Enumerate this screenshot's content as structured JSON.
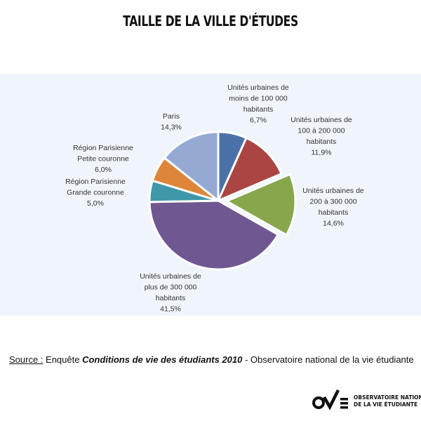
{
  "chart_data": {
    "type": "pie",
    "title": "TAILLE DE LA VILLE D'ÉTUDES",
    "slices": [
      {
        "label_lines": [
          "Unités urbaines de",
          "moins de 100 000",
          "habitants",
          "6,7%"
        ],
        "value": 6.7,
        "color": "#4a72a8",
        "exploded": false
      },
      {
        "label_lines": [
          "Unités urbaines de",
          "100 à 200 000",
          "habitants",
          "11,9%"
        ],
        "value": 11.9,
        "color": "#aa4543",
        "exploded": false
      },
      {
        "label_lines": [
          "Unités urbaines de",
          "200 à 300 000",
          "habitants",
          "14,6%"
        ],
        "value": 14.6,
        "color": "#88a74d",
        "exploded": true
      },
      {
        "label_lines": [
          "Unités urbaines de",
          "plus de 300 000",
          "habitants",
          "41,5%"
        ],
        "value": 41.5,
        "color": "#6f5891",
        "exploded": false
      },
      {
        "label_lines": [
          "Région Parisienne",
          "Grande couronne",
          "5,0%"
        ],
        "value": 5.0,
        "color": "#3f98aa",
        "exploded": false
      },
      {
        "label_lines": [
          "Région Parisienne",
          "Petite couronne",
          "6,0%"
        ],
        "value": 6.0,
        "color": "#dd8639",
        "exploded": false
      },
      {
        "label_lines": [
          "Paris",
          "14,3%"
        ],
        "value": 14.3,
        "color": "#95aad3",
        "exploded": false
      }
    ]
  },
  "source": {
    "prefix": "Source :",
    "middle": " Enquête ",
    "survey": "Conditions de vie des étudiants 2010",
    "suffix": " - Observatoire national de la vie étudiante"
  },
  "logo": {
    "line1": "OBSERVATOIRE NATIONAL",
    "line2": "DE LA VIE ÉTUDIANTE"
  }
}
